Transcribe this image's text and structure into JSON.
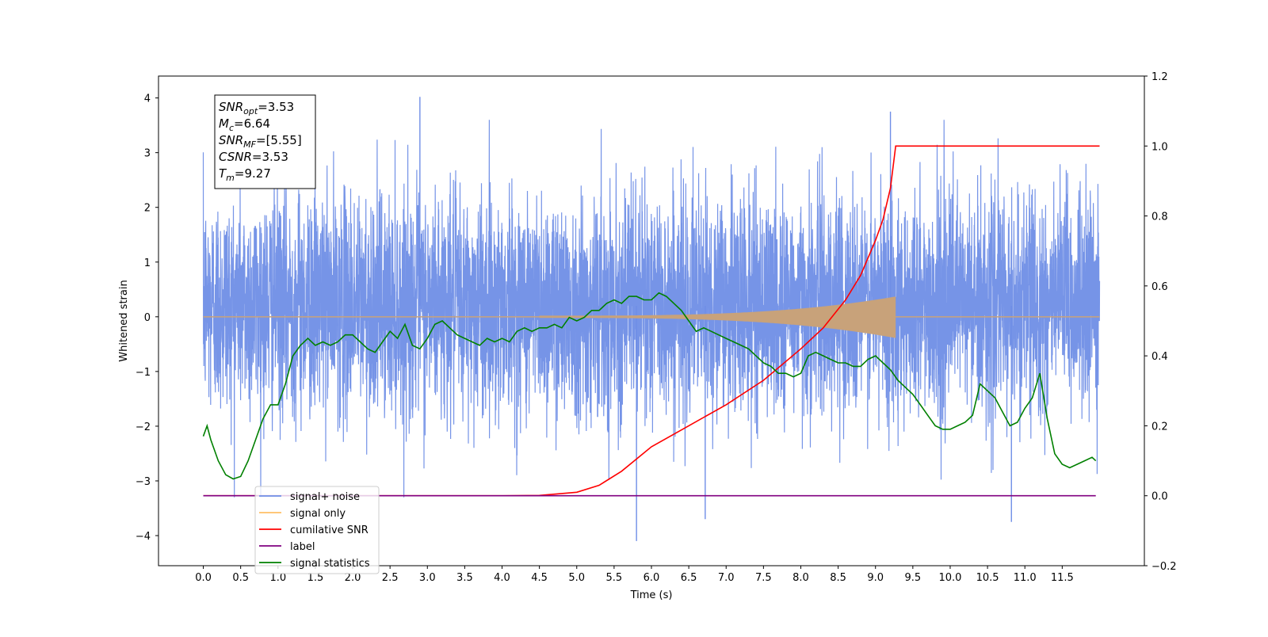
{
  "chart_data": {
    "type": "line",
    "title": "",
    "xlabel": "Time (s)",
    "ylabel": "Whitened strain",
    "y2label": "",
    "xlim": [
      -0.6,
      12.6
    ],
    "ylim": [
      -4.55,
      4.4
    ],
    "y2lim": [
      -0.2,
      1.2
    ],
    "x_ticks": [
      "0.0",
      "0.5",
      "1.0",
      "1.5",
      "2.0",
      "2.5",
      "3.0",
      "3.5",
      "4.0",
      "4.5",
      "5.0",
      "5.5",
      "6.0",
      "6.5",
      "7.0",
      "7.5",
      "8.0",
      "8.5",
      "9.0",
      "9.5",
      "10.0",
      "10.5",
      "11.0",
      "11.5"
    ],
    "y_ticks": [
      "4",
      "3",
      "2",
      "1",
      "0",
      "−1",
      "−2",
      "−3",
      "−4"
    ],
    "y2_ticks": [
      "1.2",
      "1.0",
      "0.8",
      "0.6",
      "0.4",
      "0.2",
      "0.0",
      "−0.2"
    ],
    "grid": false,
    "legend_position": "lower-left",
    "annotation": {
      "lines": [
        {
          "sym": "SNR",
          "sub": "opt",
          "value": "=3.53"
        },
        {
          "sym": "M",
          "sub": "c",
          "value": "=6.64"
        },
        {
          "sym": "SNR",
          "sub": "MF",
          "value": "=[5.55]"
        },
        {
          "sym": "CSNR",
          "sub": "",
          "value": "=3.53"
        },
        {
          "sym": "T",
          "sub": "m",
          "value": "=9.27"
        }
      ]
    },
    "series": [
      {
        "name": "signal+ noise",
        "color": "#6f8ee6",
        "axis": "left",
        "x_range": [
          0,
          12
        ],
        "noise_std": 1.0,
        "notable_peaks": [
          [
            2.9,
            4.02
          ],
          [
            5.8,
            -4.1
          ],
          [
            6.72,
            -3.7
          ],
          [
            9.2,
            3.75
          ],
          [
            10.82,
            -3.75
          ]
        ]
      },
      {
        "name": "signal only",
        "color": "#ffbf66",
        "axis": "left",
        "x_range": [
          0,
          12
        ],
        "chirp_start": 4.5,
        "chirp_end": 9.27,
        "peak_amplitude": 0.35
      },
      {
        "name": "cumilative SNR",
        "color": "#ff0000",
        "axis": "right",
        "x": [
          0,
          4.0,
          4.5,
          5.0,
          5.3,
          5.6,
          6.0,
          6.5,
          7.0,
          7.5,
          8.0,
          8.3,
          8.6,
          8.8,
          9.0,
          9.1,
          9.2,
          9.27,
          10,
          11,
          12
        ],
        "y": [
          0,
          0,
          0.001,
          0.01,
          0.03,
          0.07,
          0.14,
          0.2,
          0.26,
          0.33,
          0.42,
          0.48,
          0.56,
          0.63,
          0.73,
          0.79,
          0.88,
          1.0,
          1.0,
          1.0,
          1.0
        ]
      },
      {
        "name": "label",
        "color": "#800080",
        "axis": "right",
        "x": [
          0,
          11.95
        ],
        "y": [
          0,
          0
        ]
      },
      {
        "name": "signal statistics",
        "color": "#008000",
        "axis": "right",
        "x": [
          0,
          0.05,
          0.1,
          0.2,
          0.3,
          0.4,
          0.5,
          0.6,
          0.7,
          0.8,
          0.9,
          1.0,
          1.1,
          1.2,
          1.3,
          1.4,
          1.5,
          1.6,
          1.7,
          1.8,
          1.9,
          2.0,
          2.1,
          2.2,
          2.3,
          2.4,
          2.5,
          2.6,
          2.7,
          2.8,
          2.9,
          3.0,
          3.1,
          3.2,
          3.3,
          3.4,
          3.5,
          3.6,
          3.7,
          3.8,
          3.9,
          4.0,
          4.1,
          4.2,
          4.3,
          4.4,
          4.5,
          4.6,
          4.7,
          4.8,
          4.9,
          5.0,
          5.1,
          5.2,
          5.3,
          5.4,
          5.5,
          5.6,
          5.7,
          5.8,
          5.9,
          6.0,
          6.1,
          6.2,
          6.3,
          6.4,
          6.5,
          6.6,
          6.7,
          6.8,
          6.9,
          7.0,
          7.1,
          7.2,
          7.3,
          7.4,
          7.5,
          7.6,
          7.7,
          7.8,
          7.9,
          8.0,
          8.1,
          8.2,
          8.3,
          8.4,
          8.5,
          8.6,
          8.7,
          8.8,
          8.9,
          9.0,
          9.1,
          9.2,
          9.3,
          9.4,
          9.5,
          9.6,
          9.7,
          9.8,
          9.9,
          10.0,
          10.1,
          10.2,
          10.3,
          10.4,
          10.5,
          10.6,
          10.7,
          10.8,
          10.9,
          11.0,
          11.1,
          11.2,
          11.3,
          11.4,
          11.5,
          11.6,
          11.7,
          11.8,
          11.9,
          11.95
        ],
        "y": [
          0.17,
          0.2,
          0.16,
          0.1,
          0.06,
          0.048,
          0.055,
          0.1,
          0.16,
          0.22,
          0.26,
          0.26,
          0.32,
          0.4,
          0.43,
          0.45,
          0.43,
          0.44,
          0.43,
          0.44,
          0.46,
          0.46,
          0.44,
          0.42,
          0.41,
          0.44,
          0.47,
          0.45,
          0.49,
          0.43,
          0.42,
          0.45,
          0.49,
          0.5,
          0.48,
          0.46,
          0.45,
          0.44,
          0.43,
          0.45,
          0.44,
          0.45,
          0.44,
          0.47,
          0.48,
          0.47,
          0.48,
          0.48,
          0.49,
          0.48,
          0.51,
          0.5,
          0.51,
          0.53,
          0.53,
          0.55,
          0.56,
          0.55,
          0.57,
          0.57,
          0.56,
          0.56,
          0.58,
          0.57,
          0.55,
          0.53,
          0.5,
          0.47,
          0.48,
          0.47,
          0.46,
          0.45,
          0.44,
          0.43,
          0.42,
          0.4,
          0.38,
          0.37,
          0.35,
          0.35,
          0.34,
          0.35,
          0.4,
          0.41,
          0.4,
          0.39,
          0.38,
          0.38,
          0.37,
          0.37,
          0.39,
          0.4,
          0.38,
          0.36,
          0.33,
          0.31,
          0.29,
          0.26,
          0.23,
          0.2,
          0.19,
          0.19,
          0.2,
          0.21,
          0.23,
          0.32,
          0.3,
          0.28,
          0.24,
          0.2,
          0.21,
          0.25,
          0.28,
          0.35,
          0.22,
          0.12,
          0.09,
          0.08,
          0.09,
          0.1,
          0.11,
          0.1
        ]
      }
    ]
  }
}
